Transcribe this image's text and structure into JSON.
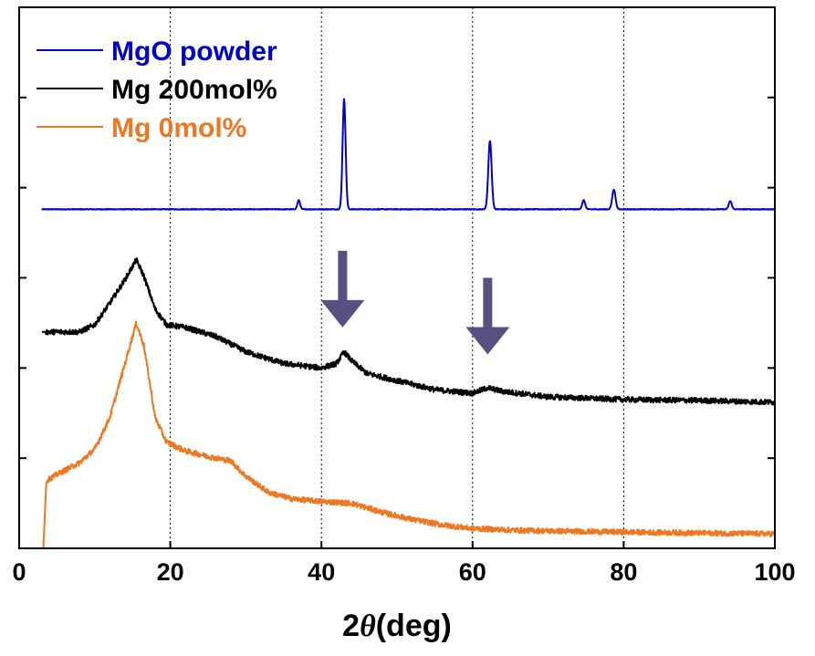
{
  "chart_data": {
    "type": "line",
    "xlabel_prefix": "2",
    "xlabel_symbol": "θ",
    "xlabel_suffix": "(deg)",
    "ylabel": "",
    "xlim": [
      0,
      100
    ],
    "ylim": [
      0,
      6
    ],
    "x_ticks": [
      0,
      20,
      40,
      60,
      80,
      100
    ],
    "y_ticks": [
      1,
      2,
      3,
      4,
      5
    ],
    "y_tick_labels": false,
    "vertical_gridlines": [
      20,
      40,
      60,
      80
    ],
    "gridline_style": "dotted",
    "legend_position": "top-left",
    "colors": {
      "axis": "#000000",
      "grid": "#000000",
      "arrow": "#5a4f82"
    },
    "series": [
      {
        "name": "MgO powder",
        "color": "#0000cc",
        "baseline": 3.76,
        "x_start": 3,
        "x_end": 100,
        "noise": 0.004,
        "peaks": [
          {
            "x": 37.0,
            "height": 0.1,
            "width": 0.18
          },
          {
            "x": 43.0,
            "height": 1.22,
            "width": 0.2
          },
          {
            "x": 62.3,
            "height": 0.76,
            "width": 0.22
          },
          {
            "x": 74.7,
            "height": 0.1,
            "width": 0.2
          },
          {
            "x": 78.7,
            "height": 0.22,
            "width": 0.22
          },
          {
            "x": 94.1,
            "height": 0.09,
            "width": 0.2
          }
        ]
      },
      {
        "name": "Mg 200mol%",
        "color": "#000000",
        "x_start": 3,
        "x_end": 100,
        "noise": 0.03,
        "profile": [
          [
            3,
            2.4
          ],
          [
            8,
            2.4
          ],
          [
            10,
            2.48
          ],
          [
            12,
            2.72
          ],
          [
            14,
            2.98
          ],
          [
            15.5,
            3.2
          ],
          [
            16.5,
            3.02
          ],
          [
            18,
            2.65
          ],
          [
            19.5,
            2.48
          ],
          [
            22,
            2.45
          ],
          [
            26,
            2.35
          ],
          [
            30,
            2.18
          ],
          [
            35,
            2.05
          ],
          [
            40,
            2.0
          ],
          [
            42,
            2.05
          ],
          [
            43,
            2.18
          ],
          [
            44,
            2.08
          ],
          [
            46,
            1.94
          ],
          [
            50,
            1.86
          ],
          [
            55,
            1.76
          ],
          [
            60,
            1.72
          ],
          [
            62,
            1.78
          ],
          [
            64,
            1.74
          ],
          [
            70,
            1.68
          ],
          [
            80,
            1.65
          ],
          [
            90,
            1.64
          ],
          [
            100,
            1.62
          ]
        ]
      },
      {
        "name": "Mg 0mol%",
        "color": "#ee7722",
        "x_start": 3,
        "x_end": 100,
        "noise": 0.03,
        "profile": [
          [
            3,
            0.0
          ],
          [
            3.2,
            0.0
          ],
          [
            3.6,
            0.75
          ],
          [
            5,
            0.82
          ],
          [
            8,
            0.95
          ],
          [
            10,
            1.1
          ],
          [
            12,
            1.45
          ],
          [
            14,
            2.05
          ],
          [
            15.5,
            2.5
          ],
          [
            16.5,
            2.25
          ],
          [
            18,
            1.45
          ],
          [
            19.5,
            1.18
          ],
          [
            22,
            1.08
          ],
          [
            26,
            1.0
          ],
          [
            28,
            0.97
          ],
          [
            30,
            0.8
          ],
          [
            33,
            0.62
          ],
          [
            36,
            0.55
          ],
          [
            40,
            0.52
          ],
          [
            44,
            0.5
          ],
          [
            48,
            0.4
          ],
          [
            52,
            0.32
          ],
          [
            56,
            0.26
          ],
          [
            60,
            0.22
          ],
          [
            66,
            0.2
          ],
          [
            72,
            0.19
          ],
          [
            80,
            0.18
          ],
          [
            90,
            0.17
          ],
          [
            100,
            0.16
          ]
        ]
      }
    ],
    "arrows": [
      {
        "x": 42.8,
        "y_top": 3.3,
        "y_tip": 2.45
      },
      {
        "x": 62.0,
        "y_top": 3.0,
        "y_tip": 2.15
      }
    ]
  }
}
